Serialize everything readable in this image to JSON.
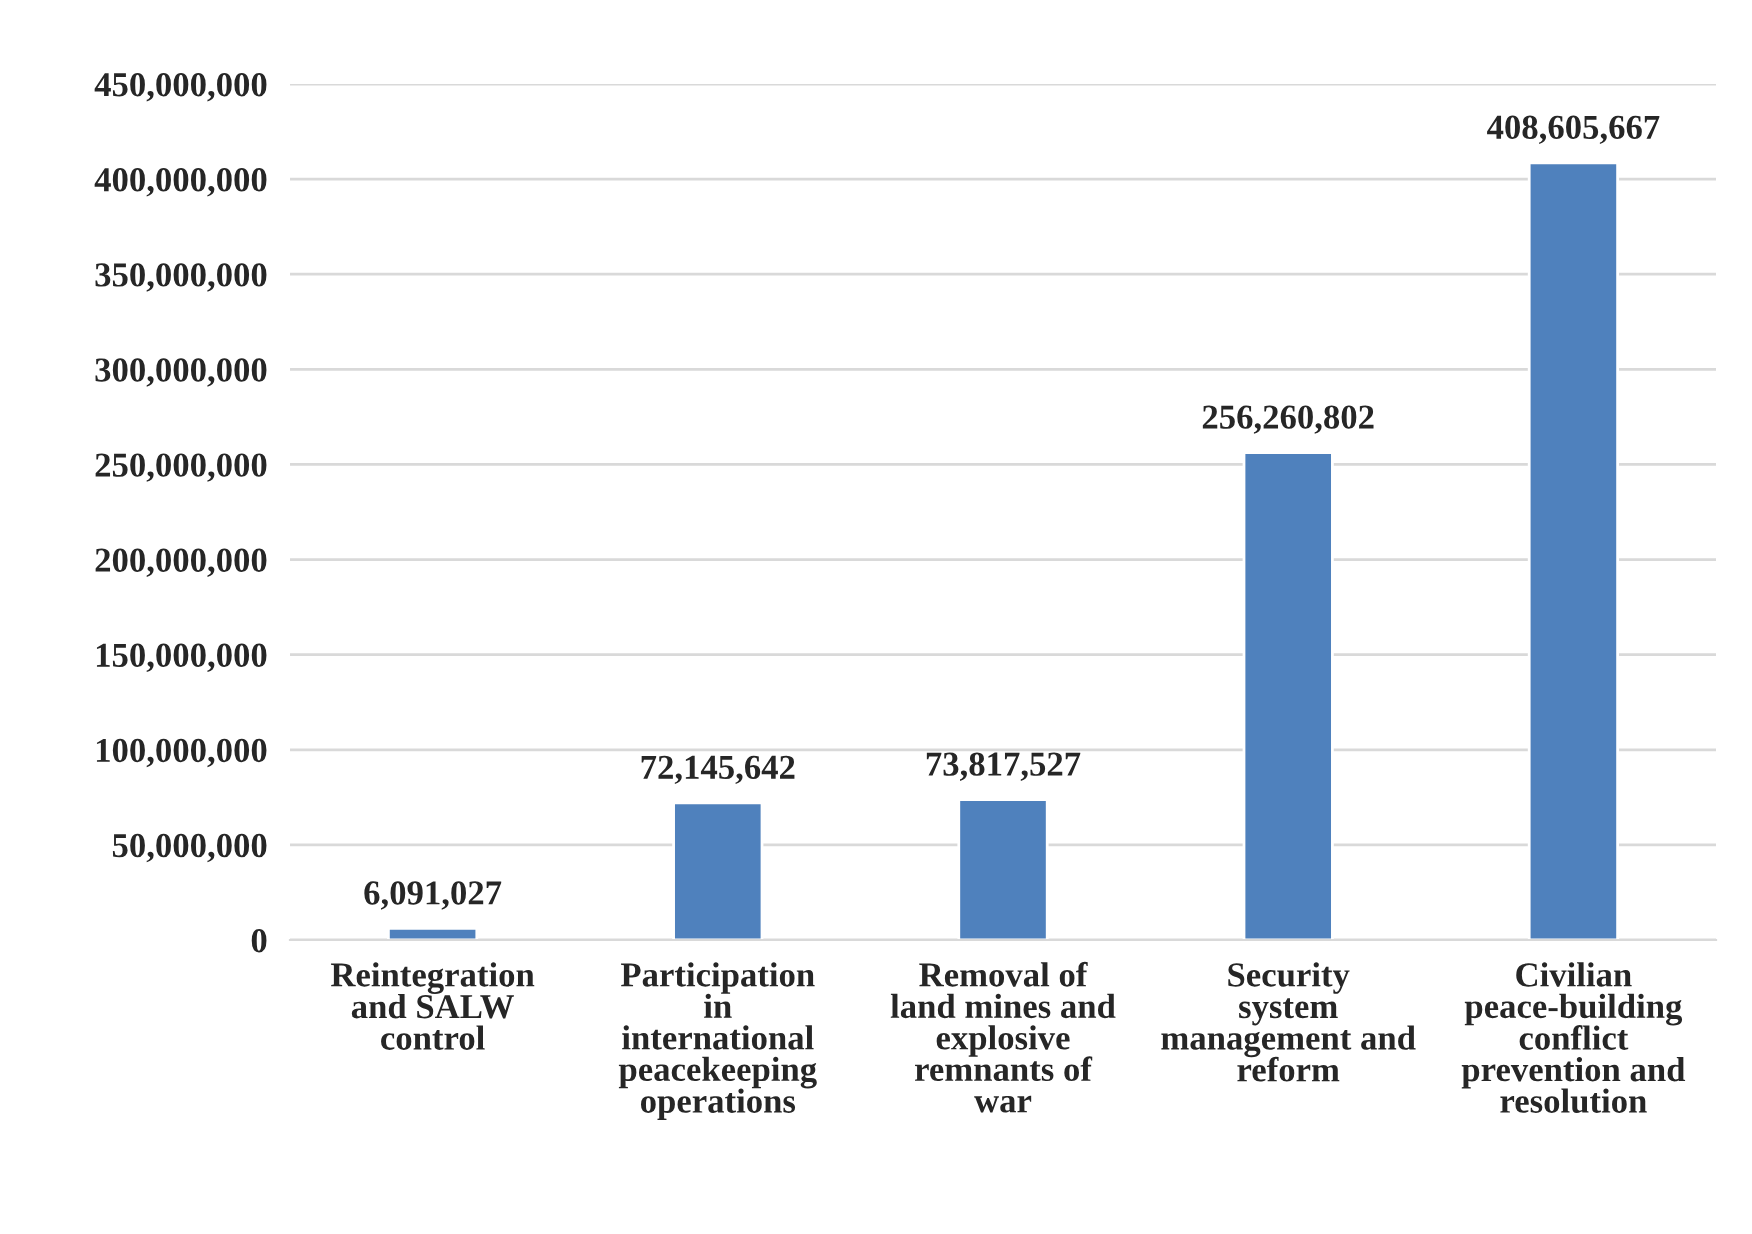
{
  "chart_data": {
    "type": "bar",
    "categories": [
      "Reintegration and SALW control",
      "Participation in international peacekeeping operations",
      "Removal of land mines and explosive remnants of war",
      "Security system management and reform",
      "Civilian peace-building conflict prevention and resolution"
    ],
    "values": [
      6091027,
      72145642,
      73817527,
      256260802,
      408605667
    ],
    "color": "#4f81bd",
    "value_labels": [
      "6,091,027",
      "72,145,642",
      "73,817,527",
      "256,260,802",
      "408,605,667"
    ],
    "ylim": [
      0,
      450000000
    ],
    "yticks": [
      {
        "value": 0,
        "label": "0"
      },
      {
        "value": 50000000,
        "label": "50,000,000"
      },
      {
        "value": 100000000,
        "label": "100,000,000"
      },
      {
        "value": 150000000,
        "label": "150,000,000"
      },
      {
        "value": 200000000,
        "label": "200,000,000"
      },
      {
        "value": 250000000,
        "label": "250,000,000"
      },
      {
        "value": 300000000,
        "label": "300,000,000"
      },
      {
        "value": 350000000,
        "label": "350,000,000"
      },
      {
        "value": 400000000,
        "label": "400,000,000"
      },
      {
        "value": 450000000,
        "label": "450,000,000"
      }
    ],
    "grid": "y",
    "legend": false
  }
}
